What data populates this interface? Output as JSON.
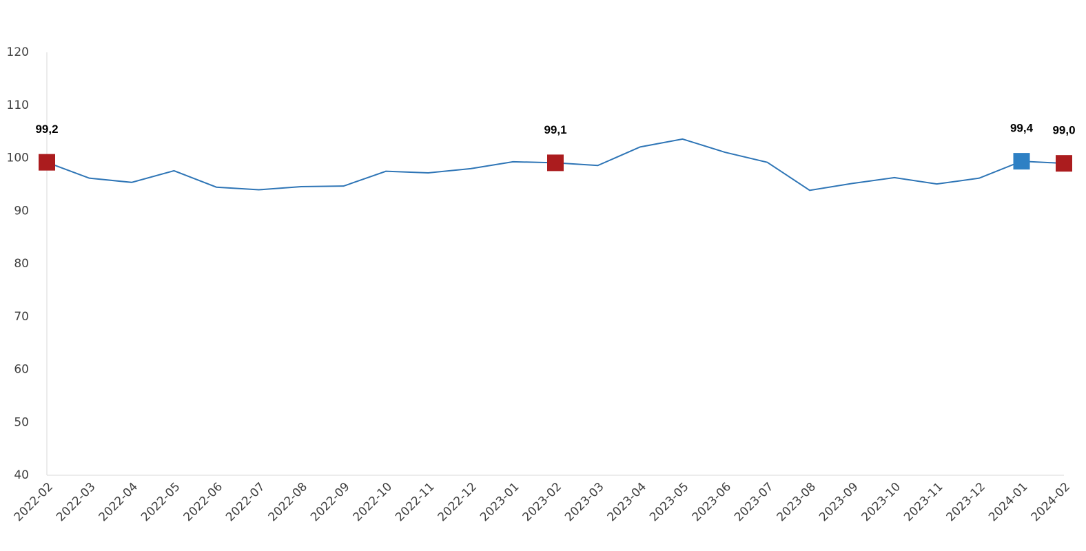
{
  "chart_data": {
    "type": "line",
    "categories": [
      "2022-02",
      "2022-03",
      "2022-04",
      "2022-05",
      "2022-06",
      "2022-07",
      "2022-08",
      "2022-09",
      "2022-10",
      "2022-11",
      "2022-12",
      "2023-01",
      "2023-02",
      "2023-03",
      "2023-04",
      "2023-05",
      "2023-06",
      "2023-07",
      "2023-08",
      "2023-09",
      "2023-10",
      "2023-11",
      "2023-12",
      "2024-01",
      "2024-02"
    ],
    "series": [
      {
        "color": "#2e75b6",
        "values": [
          99.2,
          96.2,
          95.4,
          97.6,
          94.5,
          94.0,
          94.6,
          94.7,
          97.5,
          97.2,
          98.0,
          99.3,
          99.1,
          98.6,
          102.1,
          103.6,
          101.1,
          99.2,
          93.9,
          95.2,
          96.3,
          95.1,
          96.2,
          99.4,
          99.0
        ],
        "value_labels": [
          "99,2",
          null,
          null,
          null,
          null,
          null,
          null,
          null,
          null,
          null,
          null,
          null,
          "99,1",
          null,
          null,
          null,
          null,
          null,
          null,
          null,
          null,
          null,
          null,
          "99,4",
          "99,0"
        ],
        "marker_colors": [
          "#ab1c1e",
          null,
          null,
          null,
          null,
          null,
          null,
          null,
          null,
          null,
          null,
          null,
          "#ab1c1e",
          null,
          null,
          null,
          null,
          null,
          null,
          null,
          null,
          null,
          null,
          "#2e80c4",
          "#ab1c1e"
        ]
      }
    ],
    "ylim": [
      40,
      120
    ],
    "yticks": [
      40,
      50,
      60,
      70,
      80,
      90,
      100,
      110,
      120
    ],
    "grid": false
  }
}
